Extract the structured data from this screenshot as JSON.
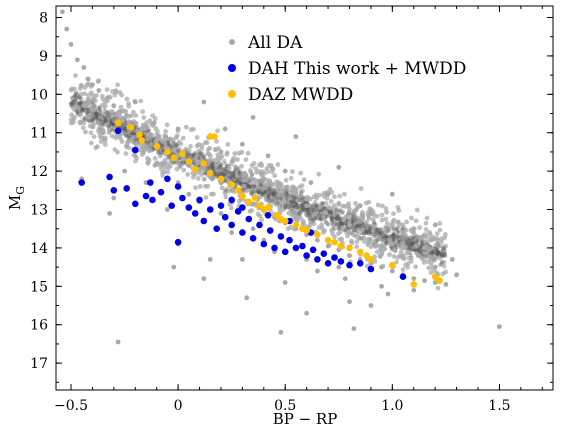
{
  "chart_data": {
    "type": "scatter",
    "title": "",
    "xlabel": "BP − RP",
    "ylabel": "M",
    "ylabel_sub": "G",
    "xlim": [
      -0.57,
      1.75
    ],
    "ylim": [
      17.7,
      7.7
    ],
    "y_inverted": true,
    "x_ticks": [
      -0.5,
      0,
      0.5,
      1,
      1.5
    ],
    "x_tick_labels": [
      "−0.5",
      "0",
      "0.5",
      "1.0",
      "1.5"
    ],
    "y_ticks": [
      8,
      9,
      10,
      11,
      12,
      13,
      14,
      15,
      16,
      17
    ],
    "y_tick_labels": [
      "8",
      "9",
      "10",
      "11",
      "12",
      "13",
      "14",
      "15",
      "16",
      "17"
    ],
    "grid": false,
    "legend_position": "top-center",
    "series": [
      {
        "name": "All DA",
        "color": "#a9a9a9",
        "marker": "small-dot",
        "note_sampled": true,
        "points": [
          [
            -0.54,
            7.85
          ],
          [
            -0.52,
            8.3
          ],
          [
            -0.5,
            8.7
          ],
          [
            -0.47,
            9.1
          ],
          [
            -0.44,
            9.3
          ],
          [
            -0.42,
            9.6
          ],
          [
            -0.4,
            9.75
          ],
          [
            -0.37,
            9.9
          ],
          [
            -0.33,
            10.1
          ],
          [
            -0.3,
            10.3
          ],
          [
            -0.27,
            10.45
          ],
          [
            -0.24,
            10.55
          ],
          [
            -0.2,
            10.75
          ],
          [
            -0.17,
            10.9
          ],
          [
            -0.13,
            11.05
          ],
          [
            -0.1,
            11.2
          ],
          [
            -0.05,
            11.4
          ],
          [
            0.0,
            11.6
          ],
          [
            0.05,
            11.8
          ],
          [
            0.1,
            11.95
          ],
          [
            0.15,
            12.15
          ],
          [
            0.2,
            12.3
          ],
          [
            0.25,
            12.5
          ],
          [
            0.3,
            12.65
          ],
          [
            0.35,
            12.85
          ],
          [
            0.4,
            13.0
          ],
          [
            0.45,
            13.2
          ],
          [
            0.5,
            13.35
          ],
          [
            0.55,
            13.5
          ],
          [
            0.6,
            13.65
          ],
          [
            0.65,
            13.8
          ],
          [
            0.7,
            13.95
          ],
          [
            0.75,
            14.05
          ],
          [
            0.8,
            14.2
          ],
          [
            0.85,
            14.3
          ],
          [
            0.9,
            14.4
          ],
          [
            0.95,
            14.5
          ],
          [
            1.0,
            14.6
          ],
          [
            1.05,
            14.7
          ],
          [
            1.1,
            14.8
          ],
          [
            1.15,
            14.85
          ],
          [
            1.2,
            14.9
          ],
          [
            1.25,
            14.95
          ],
          [
            1.3,
            14.7
          ],
          [
            1.5,
            16.05
          ],
          [
            -0.28,
            16.45
          ],
          [
            -0.45,
            12.2
          ],
          [
            -0.3,
            12.7
          ],
          [
            0.0,
            13.9
          ],
          [
            0.3,
            14.3
          ],
          [
            0.5,
            14.9
          ],
          [
            0.8,
            15.4
          ],
          [
            0.6,
            15.7
          ],
          [
            0.82,
            16.1
          ],
          [
            -0.35,
            11.0
          ],
          [
            -0.1,
            11.8
          ],
          [
            0.1,
            12.8
          ],
          [
            0.35,
            13.5
          ],
          [
            0.55,
            14.0
          ],
          [
            0.75,
            14.5
          ],
          [
            0.95,
            15.0
          ],
          [
            1.1,
            15.1
          ],
          [
            -0.2,
            10.2
          ],
          [
            0.0,
            10.9
          ],
          [
            0.2,
            11.5
          ],
          [
            0.4,
            12.2
          ],
          [
            0.6,
            12.9
          ],
          [
            0.8,
            13.4
          ],
          [
            1.0,
            13.9
          ],
          [
            1.2,
            14.5
          ],
          [
            -0.4,
            10.4
          ],
          [
            -0.15,
            12.3
          ],
          [
            0.05,
            12.6
          ],
          [
            0.25,
            13.6
          ],
          [
            0.45,
            14.1
          ],
          [
            0.65,
            14.6
          ],
          [
            0.9,
            15.5
          ],
          [
            0.15,
            14.3
          ],
          [
            -0.05,
            13.0
          ],
          [
            0.3,
            11.3
          ],
          [
            0.5,
            12.0
          ],
          [
            0.7,
            12.6
          ],
          [
            0.9,
            13.1
          ],
          [
            1.05,
            13.6
          ],
          [
            0.12,
            10.2
          ],
          [
            0.22,
            10.9
          ],
          [
            0.42,
            11.6
          ],
          [
            0.62,
            12.3
          ],
          [
            0.85,
            12.9
          ],
          [
            1.15,
            14.0
          ],
          [
            -0.25,
            12.0
          ],
          [
            0.0,
            12.3
          ],
          [
            0.2,
            13.1
          ],
          [
            0.4,
            13.8
          ],
          [
            0.6,
            14.3
          ],
          [
            0.78,
            14.8
          ],
          [
            0.98,
            15.2
          ],
          [
            0.32,
            15.3
          ],
          [
            0.12,
            14.8
          ],
          [
            -0.02,
            14.5
          ],
          [
            -0.32,
            13.1
          ],
          [
            0.48,
            16.2
          ],
          [
            0.55,
            11.1
          ],
          [
            0.35,
            10.6
          ],
          [
            0.75,
            11.9
          ],
          [
            1.0,
            12.6
          ],
          [
            1.2,
            13.4
          ],
          [
            1.28,
            14.3
          ]
        ]
      },
      {
        "name": "DAH This work + MWDD",
        "color": "#0000e6",
        "marker": "dot",
        "points": [
          [
            -0.45,
            12.3
          ],
          [
            -0.32,
            12.15
          ],
          [
            -0.3,
            12.5
          ],
          [
            -0.28,
            10.95
          ],
          [
            -0.24,
            12.45
          ],
          [
            -0.2,
            11.45
          ],
          [
            -0.2,
            12.85
          ],
          [
            -0.15,
            12.65
          ],
          [
            -0.13,
            12.3
          ],
          [
            -0.12,
            12.75
          ],
          [
            -0.08,
            12.55
          ],
          [
            -0.05,
            12.2
          ],
          [
            -0.03,
            12.9
          ],
          [
            0.0,
            12.4
          ],
          [
            0.0,
            13.85
          ],
          [
            0.02,
            12.7
          ],
          [
            0.05,
            12.95
          ],
          [
            0.08,
            13.1
          ],
          [
            0.1,
            12.75
          ],
          [
            0.12,
            13.3
          ],
          [
            0.15,
            13.0
          ],
          [
            0.18,
            13.5
          ],
          [
            0.2,
            12.9
          ],
          [
            0.22,
            13.2
          ],
          [
            0.25,
            13.4
          ],
          [
            0.28,
            13.05
          ],
          [
            0.3,
            13.6
          ],
          [
            0.33,
            13.25
          ],
          [
            0.35,
            13.75
          ],
          [
            0.38,
            13.4
          ],
          [
            0.4,
            13.9
          ],
          [
            0.43,
            13.55
          ],
          [
            0.45,
            14.0
          ],
          [
            0.48,
            13.7
          ],
          [
            0.5,
            14.1
          ],
          [
            0.52,
            13.8
          ],
          [
            0.55,
            14.0
          ],
          [
            0.58,
            13.95
          ],
          [
            0.6,
            14.2
          ],
          [
            0.63,
            14.05
          ],
          [
            0.65,
            14.3
          ],
          [
            0.68,
            14.15
          ],
          [
            0.7,
            14.4
          ],
          [
            0.73,
            14.25
          ],
          [
            0.76,
            14.35
          ],
          [
            0.8,
            14.45
          ],
          [
            0.85,
            14.4
          ],
          [
            0.9,
            14.55
          ],
          [
            1.05,
            14.75
          ],
          [
            0.25,
            12.75
          ],
          [
            0.3,
            12.95
          ],
          [
            0.52,
            13.3
          ],
          [
            0.62,
            13.6
          ],
          [
            0.42,
            13.15
          ]
        ]
      },
      {
        "name": "DAZ MWDD",
        "color": "#ffbf00",
        "marker": "dot",
        "points": [
          [
            -0.28,
            10.75
          ],
          [
            -0.22,
            10.85
          ],
          [
            -0.18,
            11.05
          ],
          [
            -0.17,
            11.2
          ],
          [
            -0.1,
            11.35
          ],
          [
            -0.05,
            11.5
          ],
          [
            -0.02,
            11.65
          ],
          [
            0.02,
            11.55
          ],
          [
            0.05,
            11.75
          ],
          [
            0.08,
            11.95
          ],
          [
            0.12,
            11.8
          ],
          [
            0.15,
            11.1
          ],
          [
            0.17,
            11.1
          ],
          [
            0.15,
            12.05
          ],
          [
            0.2,
            12.2
          ],
          [
            0.25,
            12.35
          ],
          [
            0.28,
            12.5
          ],
          [
            0.3,
            12.65
          ],
          [
            0.33,
            12.8
          ],
          [
            0.36,
            12.7
          ],
          [
            0.38,
            12.9
          ],
          [
            0.4,
            13.0
          ],
          [
            0.42,
            12.95
          ],
          [
            0.46,
            13.15
          ],
          [
            0.48,
            13.25
          ],
          [
            0.5,
            13.3
          ],
          [
            0.55,
            13.4
          ],
          [
            0.58,
            13.5
          ],
          [
            0.6,
            13.55
          ],
          [
            0.65,
            13.65
          ],
          [
            0.7,
            13.8
          ],
          [
            0.73,
            13.85
          ],
          [
            0.76,
            13.95
          ],
          [
            0.8,
            14.0
          ],
          [
            0.85,
            14.1
          ],
          [
            0.88,
            14.2
          ],
          [
            0.9,
            14.3
          ],
          [
            1.0,
            14.45
          ],
          [
            1.1,
            14.95
          ],
          [
            1.2,
            14.75
          ],
          [
            1.22,
            14.85
          ]
        ]
      }
    ]
  }
}
